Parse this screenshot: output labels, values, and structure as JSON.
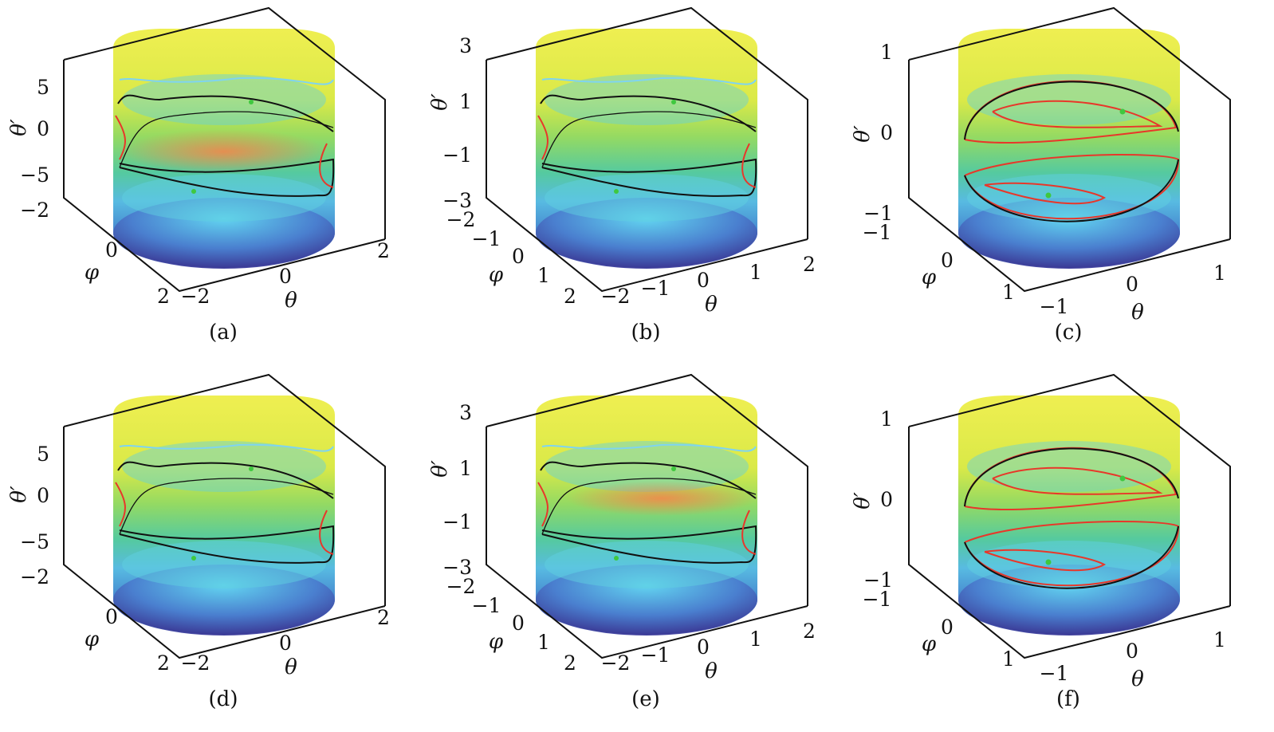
{
  "chart_data": [
    {
      "type": "surface3d",
      "label": "(a)",
      "xlabel": "θ",
      "ylabel": "φ",
      "zlabel": "θ′",
      "xticks": [
        "−2",
        "0",
        "2"
      ],
      "yticks": [
        "−2",
        "0",
        "2"
      ],
      "zticks": [
        "5",
        "0",
        "−5"
      ],
      "xlim": [
        -2,
        2
      ],
      "ylim": [
        -2,
        2
      ],
      "zlim": [
        -8,
        8
      ]
    },
    {
      "type": "surface3d",
      "label": "(b)",
      "xlabel": "θ",
      "ylabel": "φ",
      "zlabel": "θ′",
      "xticks": [
        "−2",
        "−1",
        "0",
        "1",
        "2"
      ],
      "yticks": [
        "−2",
        "−1",
        "0",
        "1",
        "2"
      ],
      "zticks": [
        "3",
        "1",
        "−1",
        "−3"
      ],
      "xlim": [
        -2,
        2
      ],
      "ylim": [
        -2,
        2
      ],
      "zlim": [
        -3,
        3
      ]
    },
    {
      "type": "surface3d",
      "label": "(c)",
      "xlabel": "θ",
      "ylabel": "φ",
      "zlabel": "θ′",
      "xticks": [
        "−1",
        "0",
        "1"
      ],
      "yticks": [
        "−1",
        "0",
        "1"
      ],
      "zticks": [
        "1",
        "0",
        "−1"
      ],
      "xlim": [
        -1.2,
        1.2
      ],
      "ylim": [
        -1.2,
        1.2
      ],
      "zlim": [
        -1,
        1
      ]
    },
    {
      "type": "surface3d",
      "label": "(d)",
      "xlabel": "θ",
      "ylabel": "φ",
      "zlabel": "θ′",
      "xticks": [
        "−2",
        "0",
        "2"
      ],
      "yticks": [
        "−2",
        "0",
        "2"
      ],
      "zticks": [
        "5",
        "0",
        "−5"
      ],
      "xlim": [
        -2,
        2
      ],
      "ylim": [
        -2,
        2
      ],
      "zlim": [
        -8,
        8
      ]
    },
    {
      "type": "surface3d",
      "label": "(e)",
      "xlabel": "θ",
      "ylabel": "φ",
      "zlabel": "θ′",
      "xticks": [
        "−2",
        "−1",
        "0",
        "1",
        "2"
      ],
      "yticks": [
        "−2",
        "−1",
        "0",
        "1",
        "2"
      ],
      "zticks": [
        "3",
        "1",
        "−1",
        "−3"
      ],
      "xlim": [
        -2,
        2
      ],
      "ylim": [
        -2,
        2
      ],
      "zlim": [
        -3,
        3
      ]
    },
    {
      "type": "surface3d",
      "label": "(f)",
      "xlabel": "θ",
      "ylabel": "φ",
      "zlabel": "θ′",
      "xticks": [
        "−1",
        "0",
        "1"
      ],
      "yticks": [
        "−1",
        "0",
        "1"
      ],
      "zticks": [
        "1",
        "0",
        "−1"
      ],
      "xlim": [
        -1.2,
        1.2
      ],
      "ylim": [
        -1.2,
        1.2
      ],
      "zlim": [
        -1,
        1
      ]
    }
  ],
  "colors": {
    "high": "#f0ee3a",
    "mid": "#5fcf6a",
    "cyan": "#5cd0e8",
    "low": "#3f3f9e",
    "trajectory": "#111111",
    "contour": "#e8372a",
    "fixed_point": "#3fc83f"
  }
}
